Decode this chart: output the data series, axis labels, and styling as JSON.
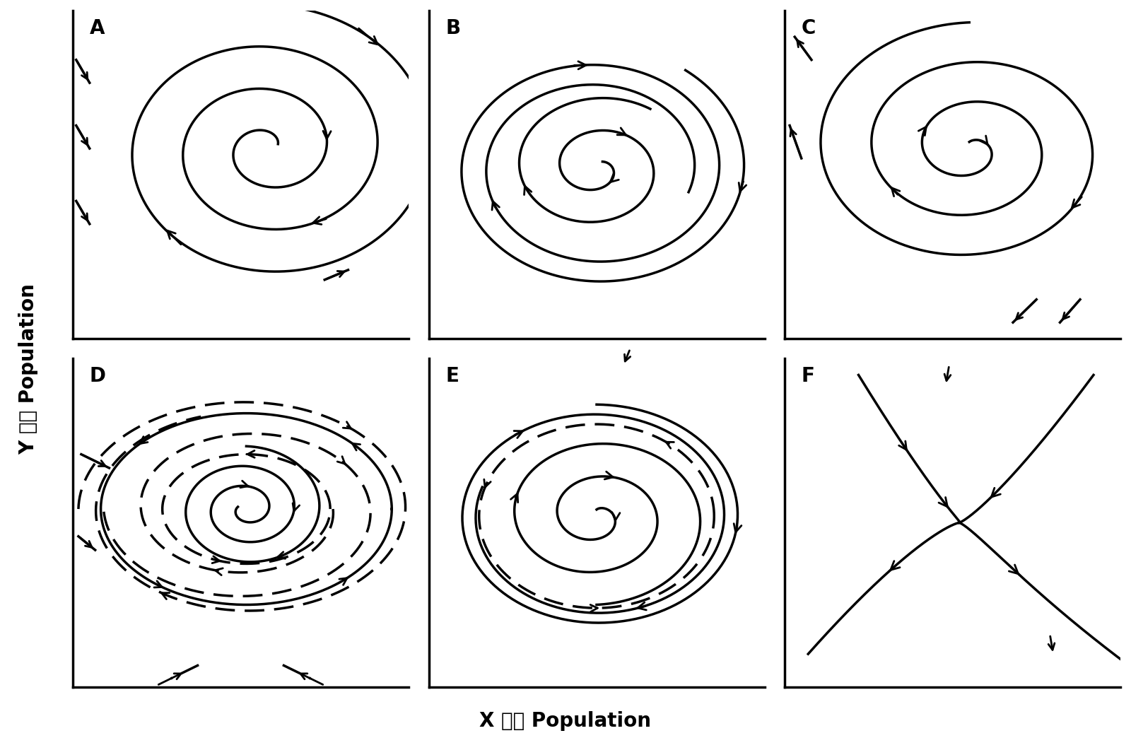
{
  "xlabel": "X 种群 Population",
  "ylabel": "Y 种群 Population",
  "panels": [
    "A",
    "B",
    "C",
    "D",
    "E",
    "F"
  ],
  "background_color": "#ffffff",
  "line_color": "#000000",
  "lw": 2.5,
  "arrow_size": 20
}
